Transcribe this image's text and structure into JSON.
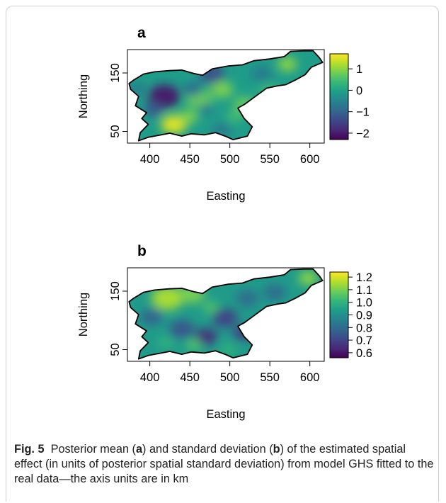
{
  "caption": {
    "label": "Fig. 5",
    "text_parts": [
      "Posterior mean (",
      "a",
      ") and standard deviation (",
      "b",
      ") of the estimated spatial effect (in units of posterior spatial standard deviation) from model GHS fitted to the real data—the axis units are in km"
    ]
  },
  "chart_data": [
    {
      "type": "heatmap",
      "panel_label": "a",
      "xlabel": "Easting",
      "ylabel": "Northing",
      "xticks": [
        "400",
        "450",
        "500",
        "550",
        "600"
      ],
      "yticks": [
        "50",
        "150"
      ],
      "xlim": [
        372,
        618
      ],
      "ylim": [
        30,
        190
      ],
      "colorbar": {
        "min": -2.3,
        "max": 1.7,
        "ticks": [
          "1",
          "0",
          "−1",
          "−2"
        ],
        "tick_values": [
          1,
          0,
          -1,
          -2
        ]
      },
      "colorscale": "viridis",
      "blobs": [
        {
          "x": 418,
          "y": 110,
          "r": 20,
          "v": -2.0
        },
        {
          "x": 404,
          "y": 88,
          "r": 12,
          "v": -1.2
        },
        {
          "x": 430,
          "y": 62,
          "r": 16,
          "v": 1.5
        },
        {
          "x": 448,
          "y": 75,
          "r": 12,
          "v": 0.9
        },
        {
          "x": 462,
          "y": 105,
          "r": 16,
          "v": 0.8
        },
        {
          "x": 490,
          "y": 122,
          "r": 14,
          "v": 0.9
        },
        {
          "x": 518,
          "y": 96,
          "r": 14,
          "v": 0.7
        },
        {
          "x": 506,
          "y": 76,
          "r": 10,
          "v": 0.5
        },
        {
          "x": 478,
          "y": 148,
          "r": 16,
          "v": -1.3
        },
        {
          "x": 454,
          "y": 122,
          "r": 12,
          "v": -0.9
        },
        {
          "x": 384,
          "y": 122,
          "r": 12,
          "v": -0.6
        },
        {
          "x": 540,
          "y": 148,
          "r": 14,
          "v": -0.6
        },
        {
          "x": 572,
          "y": 165,
          "r": 12,
          "v": 1.0
        },
        {
          "x": 548,
          "y": 120,
          "r": 12,
          "v": 0.4
        },
        {
          "x": 490,
          "y": 52,
          "r": 12,
          "v": -0.7
        },
        {
          "x": 470,
          "y": 88,
          "r": 10,
          "v": -0.6
        }
      ],
      "base_value": -0.1
    },
    {
      "type": "heatmap",
      "panel_label": "b",
      "xlabel": "Easting",
      "ylabel": "Northing",
      "xticks": [
        "400",
        "450",
        "500",
        "550",
        "600"
      ],
      "yticks": [
        "50",
        "150"
      ],
      "xlim": [
        372,
        618
      ],
      "ylim": [
        30,
        190
      ],
      "colorbar": {
        "min": 0.56,
        "max": 1.24,
        "ticks": [
          "1.2",
          "1.1",
          "1.0",
          "0.9",
          "0.8",
          "0.7",
          "0.6"
        ],
        "tick_values": [
          1.2,
          1.1,
          1.0,
          0.9,
          0.8,
          0.7,
          0.6
        ]
      },
      "colorscale": "viridis",
      "blobs": [
        {
          "x": 422,
          "y": 138,
          "r": 20,
          "v": 1.15
        },
        {
          "x": 452,
          "y": 145,
          "r": 16,
          "v": 1.1
        },
        {
          "x": 402,
          "y": 106,
          "r": 14,
          "v": 0.78
        },
        {
          "x": 440,
          "y": 85,
          "r": 16,
          "v": 0.75
        },
        {
          "x": 470,
          "y": 72,
          "r": 14,
          "v": 0.65
        },
        {
          "x": 494,
          "y": 104,
          "r": 16,
          "v": 0.7
        },
        {
          "x": 516,
          "y": 78,
          "r": 12,
          "v": 0.68
        },
        {
          "x": 522,
          "y": 138,
          "r": 14,
          "v": 0.8
        },
        {
          "x": 556,
          "y": 148,
          "r": 14,
          "v": 0.8
        },
        {
          "x": 598,
          "y": 172,
          "r": 12,
          "v": 1.12
        },
        {
          "x": 476,
          "y": 122,
          "r": 10,
          "v": 1.05
        },
        {
          "x": 455,
          "y": 58,
          "r": 10,
          "v": 1.05
        },
        {
          "x": 420,
          "y": 62,
          "r": 10,
          "v": 1.0
        },
        {
          "x": 498,
          "y": 50,
          "r": 10,
          "v": 1.0
        }
      ],
      "base_value": 0.93
    }
  ]
}
